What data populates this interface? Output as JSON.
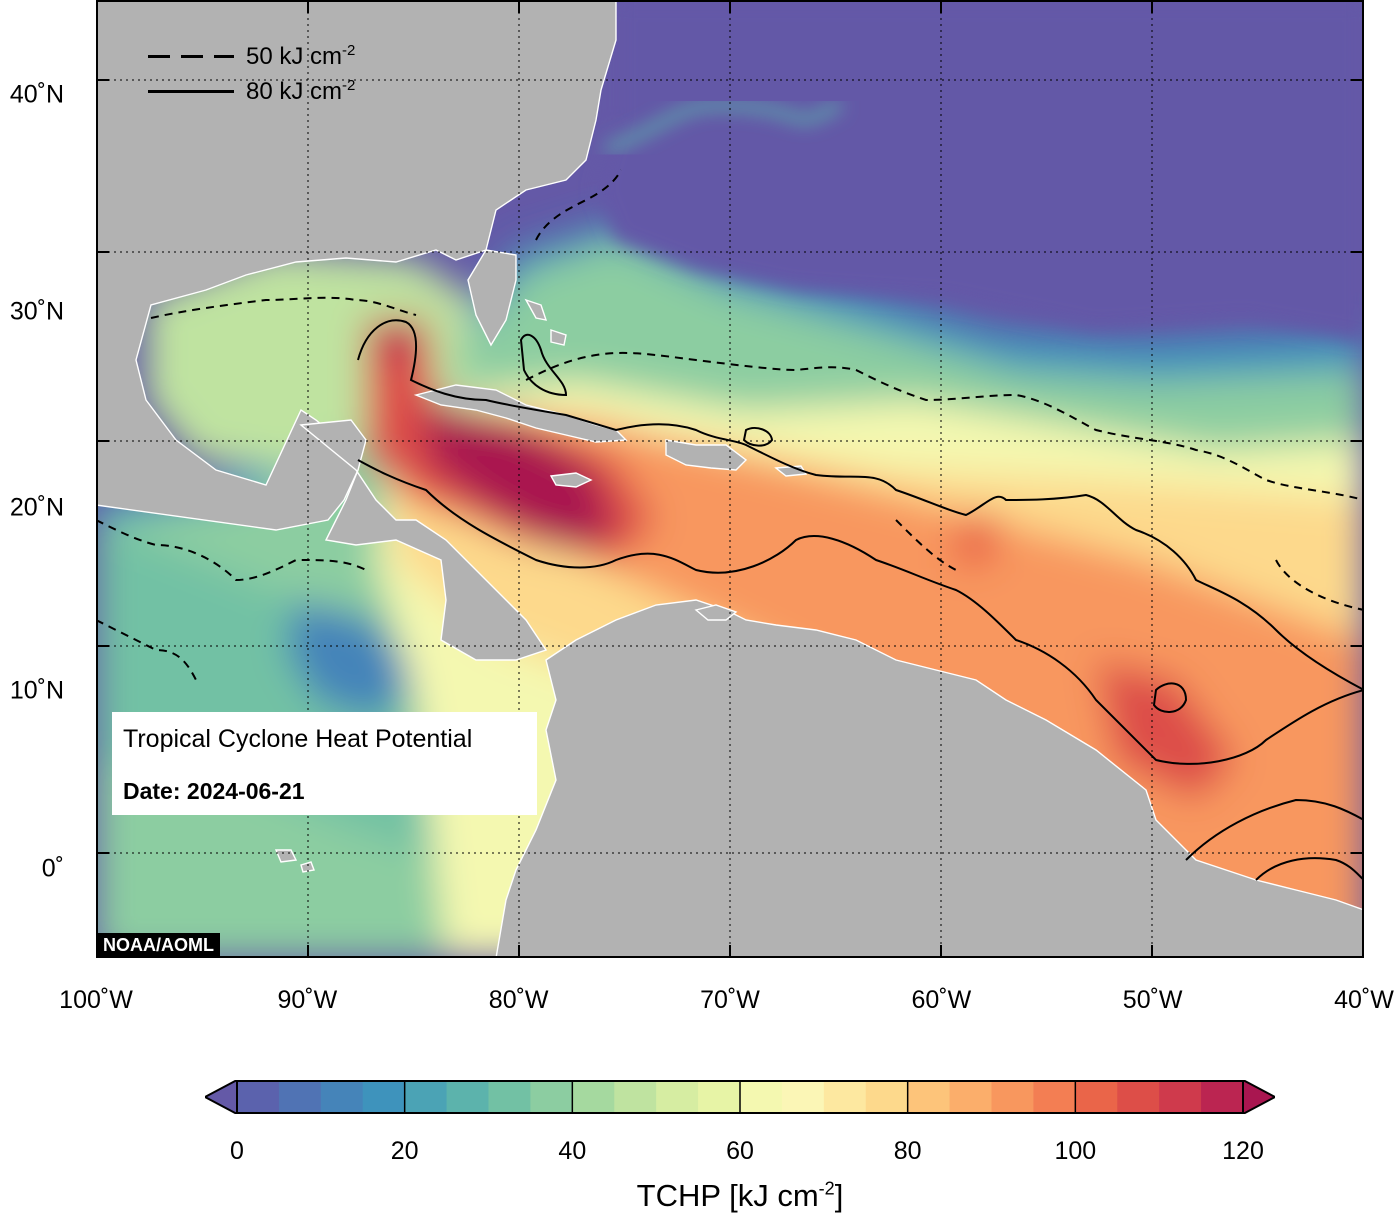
{
  "map": {
    "lat_labels": [
      {
        "text": "40˚N",
        "lat": 40
      },
      {
        "text": "30˚N",
        "lat": 30
      },
      {
        "text": "20˚N",
        "lat": 20
      },
      {
        "text": "10˚N",
        "lat": 10
      },
      {
        "text": "0˚",
        "lat": 0
      }
    ],
    "lon_labels": [
      {
        "text": "100˚W",
        "lon": -100
      },
      {
        "text": "90˚W",
        "lon": -90
      },
      {
        "text": "80˚W",
        "lon": -80
      },
      {
        "text": "70˚W",
        "lon": -70
      },
      {
        "text": "60˚W",
        "lon": -60
      },
      {
        "text": "50˚W",
        "lon": -50
      },
      {
        "text": "40˚W",
        "lon": -40
      }
    ],
    "extent": {
      "lon_min": -100,
      "lon_max": -40,
      "lat_min": -5,
      "lat_max": 44
    },
    "land_color": "#b2b2b2",
    "coast_color": "#ffffff",
    "low_value_color": "#6459a7"
  },
  "contour_legend": {
    "dashed": {
      "value": "50 kJ cm",
      "exp": "-2"
    },
    "solid": {
      "value": "80 kJ cm",
      "exp": "-2"
    }
  },
  "info_box": {
    "title": "Tropical Cyclone Heat Potential",
    "date": "Date: 2024-06-21"
  },
  "credit": "NOAA/AOML",
  "colorbar": {
    "title": "TCHP [kJ cm",
    "title_exp": "-2",
    "title_close": "]",
    "min": 0,
    "max": 120,
    "tick_labels": [
      "0",
      "20",
      "40",
      "60",
      "80",
      "100",
      "120"
    ],
    "colors": [
      "#6459a7",
      "#5b62ad",
      "#5073b4",
      "#4584b9",
      "#3e93bc",
      "#4ba3b5",
      "#5cb3ac",
      "#72c1a4",
      "#8ccda1",
      "#a5d99f",
      "#bfe3a0",
      "#d6eda2",
      "#e7f4a6",
      "#f4f8b0",
      "#fbf6b6",
      "#fde8a0",
      "#fdd98c",
      "#fdc47a",
      "#fbae6b",
      "#f8975e",
      "#f37e53",
      "#ea6549",
      "#dd4e48",
      "#cf3a4c",
      "#bb2551",
      "#a91650"
    ]
  }
}
